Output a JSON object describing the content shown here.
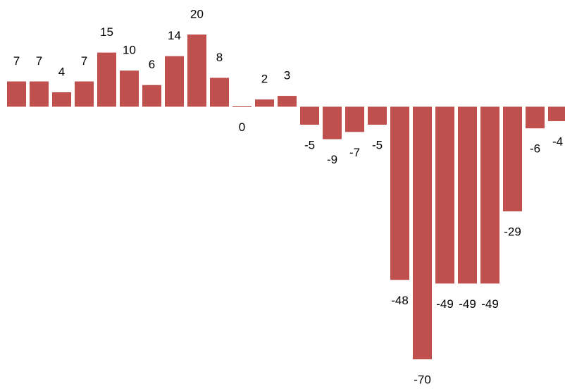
{
  "chart_data": {
    "type": "bar",
    "values": [
      7,
      7,
      4,
      7,
      15,
      10,
      6,
      14,
      20,
      8,
      0,
      2,
      3,
      -5,
      -9,
      -7,
      -5,
      -48,
      -70,
      -49,
      -49,
      -49,
      -29,
      -6,
      -4
    ],
    "color": "#c0504d",
    "grid": false
  }
}
